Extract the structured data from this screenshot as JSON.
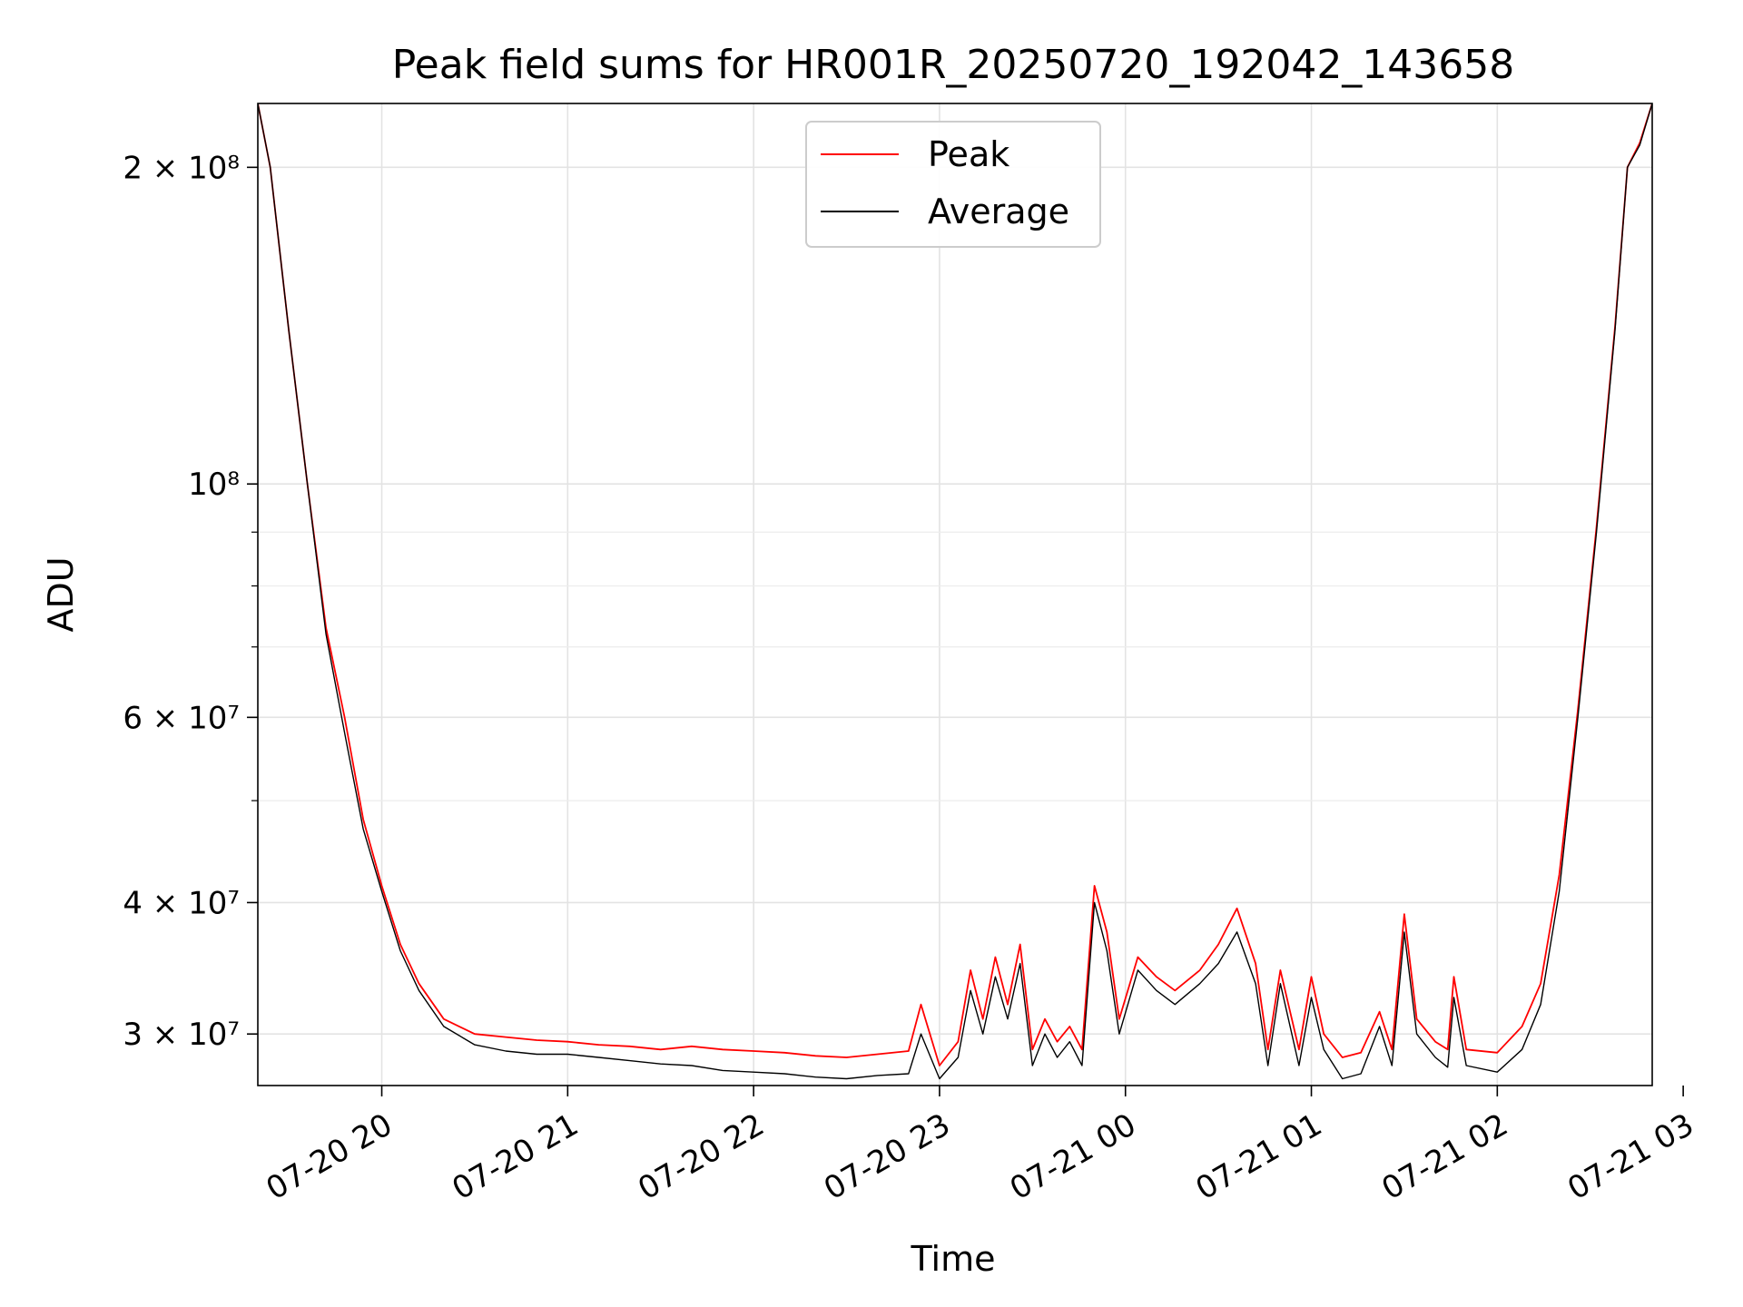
{
  "chart_data": {
    "type": "line",
    "title": "Peak field sums for HR001R_20250720_192042_143658",
    "xlabel": "Time",
    "ylabel": "ADU",
    "yscale": "log",
    "x_start": "07-20 19:20",
    "x_end": "07-21 02:50",
    "ylim": [
      26800000,
      230000000
    ],
    "grid": true,
    "legend_position": "upper center",
    "x_ticks": [
      {
        "label": "07-20 20",
        "time": "07-20 20:00"
      },
      {
        "label": "07-20 21",
        "time": "07-20 21:00"
      },
      {
        "label": "07-20 22",
        "time": "07-20 22:00"
      },
      {
        "label": "07-20 23",
        "time": "07-20 23:00"
      },
      {
        "label": "07-21 00",
        "time": "07-21 00:00"
      },
      {
        "label": "07-21 01",
        "time": "07-21 01:00"
      },
      {
        "label": "07-21 02",
        "time": "07-21 02:00"
      },
      {
        "label": "07-21 03",
        "time": "07-21 03:00"
      }
    ],
    "y_major_ticks": [
      {
        "label": "2 × 10⁸",
        "value": 200000000
      },
      {
        "label": "10⁸",
        "value": 100000000
      },
      {
        "label": "6 × 10⁷",
        "value": 60000000
      },
      {
        "label": "4 × 10⁷",
        "value": 40000000
      },
      {
        "label": "3 × 10⁷",
        "value": 30000000
      }
    ],
    "y_minor_ticks": [
      90000000,
      80000000,
      70000000,
      50000000
    ],
    "series": [
      {
        "name": "Average",
        "color": "#000000",
        "points": [
          [
            "07-20 19:20",
            230000000
          ],
          [
            "07-20 19:24",
            200000000
          ],
          [
            "07-20 19:30",
            140000000
          ],
          [
            "07-20 19:36",
            100000000
          ],
          [
            "07-20 19:42",
            72000000
          ],
          [
            "07-20 19:48",
            58000000
          ],
          [
            "07-20 19:54",
            47000000
          ],
          [
            "07-20 20:00",
            41000000
          ],
          [
            "07-20 20:06",
            36000000
          ],
          [
            "07-20 20:12",
            33000000
          ],
          [
            "07-20 20:20",
            30500000
          ],
          [
            "07-20 20:30",
            29300000
          ],
          [
            "07-20 20:40",
            28900000
          ],
          [
            "07-20 20:50",
            28700000
          ],
          [
            "07-20 21:00",
            28700000
          ],
          [
            "07-20 21:10",
            28500000
          ],
          [
            "07-20 21:20",
            28300000
          ],
          [
            "07-20 21:30",
            28100000
          ],
          [
            "07-20 21:40",
            28000000
          ],
          [
            "07-20 21:50",
            27700000
          ],
          [
            "07-20 22:00",
            27600000
          ],
          [
            "07-20 22:10",
            27500000
          ],
          [
            "07-20 22:20",
            27300000
          ],
          [
            "07-20 22:30",
            27200000
          ],
          [
            "07-20 22:40",
            27400000
          ],
          [
            "07-20 22:50",
            27500000
          ],
          [
            "07-20 22:54",
            30000000
          ],
          [
            "07-20 23:00",
            27200000
          ],
          [
            "07-20 23:06",
            28500000
          ],
          [
            "07-20 23:10",
            33000000
          ],
          [
            "07-20 23:14",
            30000000
          ],
          [
            "07-20 23:18",
            34000000
          ],
          [
            "07-20 23:22",
            31000000
          ],
          [
            "07-20 23:26",
            35000000
          ],
          [
            "07-20 23:30",
            28000000
          ],
          [
            "07-20 23:34",
            30000000
          ],
          [
            "07-20 23:38",
            28500000
          ],
          [
            "07-20 23:42",
            29500000
          ],
          [
            "07-20 23:46",
            28000000
          ],
          [
            "07-20 23:50",
            40000000
          ],
          [
            "07-20 23:54",
            36000000
          ],
          [
            "07-20 23:58",
            30000000
          ],
          [
            "07-21 00:04",
            34500000
          ],
          [
            "07-21 00:10",
            33000000
          ],
          [
            "07-21 00:16",
            32000000
          ],
          [
            "07-21 00:24",
            33500000
          ],
          [
            "07-21 00:30",
            35000000
          ],
          [
            "07-21 00:36",
            37500000
          ],
          [
            "07-21 00:42",
            33500000
          ],
          [
            "07-21 00:46",
            28000000
          ],
          [
            "07-21 00:50",
            33500000
          ],
          [
            "07-21 00:56",
            28000000
          ],
          [
            "07-21 01:00",
            32500000
          ],
          [
            "07-21 01:04",
            29000000
          ],
          [
            "07-21 01:10",
            27200000
          ],
          [
            "07-21 01:16",
            27500000
          ],
          [
            "07-21 01:22",
            30500000
          ],
          [
            "07-21 01:26",
            28000000
          ],
          [
            "07-21 01:30",
            37500000
          ],
          [
            "07-21 01:34",
            30000000
          ],
          [
            "07-21 01:40",
            28500000
          ],
          [
            "07-21 01:44",
            27900000
          ],
          [
            "07-21 01:46",
            32500000
          ],
          [
            "07-21 01:50",
            28000000
          ],
          [
            "07-21 02:00",
            27600000
          ],
          [
            "07-21 02:08",
            29000000
          ],
          [
            "07-21 02:14",
            32000000
          ],
          [
            "07-21 02:20",
            41000000
          ],
          [
            "07-21 02:26",
            60000000
          ],
          [
            "07-21 02:32",
            90000000
          ],
          [
            "07-21 02:38",
            140000000
          ],
          [
            "07-21 02:42",
            200000000
          ],
          [
            "07-21 02:46",
            210000000
          ],
          [
            "07-21 02:50",
            230000000
          ]
        ]
      },
      {
        "name": "Peak",
        "color": "#ff0000",
        "points": [
          [
            "07-20 19:20",
            230000000
          ],
          [
            "07-20 19:24",
            200000000
          ],
          [
            "07-20 19:30",
            140000000
          ],
          [
            "07-20 19:36",
            100000000
          ],
          [
            "07-20 19:42",
            73000000
          ],
          [
            "07-20 19:48",
            60000000
          ],
          [
            "07-20 19:54",
            48000000
          ],
          [
            "07-20 20:00",
            41500000
          ],
          [
            "07-20 20:06",
            36500000
          ],
          [
            "07-20 20:12",
            33500000
          ],
          [
            "07-20 20:20",
            31000000
          ],
          [
            "07-20 20:30",
            30000000
          ],
          [
            "07-20 20:40",
            29800000
          ],
          [
            "07-20 20:50",
            29600000
          ],
          [
            "07-20 21:00",
            29500000
          ],
          [
            "07-20 21:10",
            29300000
          ],
          [
            "07-20 21:20",
            29200000
          ],
          [
            "07-20 21:30",
            29000000
          ],
          [
            "07-20 21:40",
            29200000
          ],
          [
            "07-20 21:50",
            29000000
          ],
          [
            "07-20 22:00",
            28900000
          ],
          [
            "07-20 22:10",
            28800000
          ],
          [
            "07-20 22:20",
            28600000
          ],
          [
            "07-20 22:30",
            28500000
          ],
          [
            "07-20 22:40",
            28700000
          ],
          [
            "07-20 22:50",
            28900000
          ],
          [
            "07-20 22:54",
            32000000
          ],
          [
            "07-20 23:00",
            28000000
          ],
          [
            "07-20 23:06",
            29500000
          ],
          [
            "07-20 23:10",
            34500000
          ],
          [
            "07-20 23:14",
            31000000
          ],
          [
            "07-20 23:18",
            35500000
          ],
          [
            "07-20 23:22",
            32000000
          ],
          [
            "07-20 23:26",
            36500000
          ],
          [
            "07-20 23:30",
            29000000
          ],
          [
            "07-20 23:34",
            31000000
          ],
          [
            "07-20 23:38",
            29500000
          ],
          [
            "07-20 23:42",
            30500000
          ],
          [
            "07-20 23:46",
            29000000
          ],
          [
            "07-20 23:50",
            41500000
          ],
          [
            "07-20 23:54",
            37500000
          ],
          [
            "07-20 23:58",
            31000000
          ],
          [
            "07-21 00:04",
            35500000
          ],
          [
            "07-21 00:10",
            34000000
          ],
          [
            "07-21 00:16",
            33000000
          ],
          [
            "07-21 00:24",
            34500000
          ],
          [
            "07-21 00:30",
            36500000
          ],
          [
            "07-21 00:36",
            39500000
          ],
          [
            "07-21 00:42",
            35000000
          ],
          [
            "07-21 00:46",
            29000000
          ],
          [
            "07-21 00:50",
            34500000
          ],
          [
            "07-21 00:56",
            29000000
          ],
          [
            "07-21 01:00",
            34000000
          ],
          [
            "07-21 01:04",
            30000000
          ],
          [
            "07-21 01:10",
            28500000
          ],
          [
            "07-21 01:16",
            28800000
          ],
          [
            "07-21 01:22",
            31500000
          ],
          [
            "07-21 01:26",
            29000000
          ],
          [
            "07-21 01:30",
            39000000
          ],
          [
            "07-21 01:34",
            31000000
          ],
          [
            "07-21 01:40",
            29500000
          ],
          [
            "07-21 01:44",
            29000000
          ],
          [
            "07-21 01:46",
            34000000
          ],
          [
            "07-21 01:50",
            29000000
          ],
          [
            "07-21 02:00",
            28800000
          ],
          [
            "07-21 02:08",
            30500000
          ],
          [
            "07-21 02:14",
            33500000
          ],
          [
            "07-21 02:20",
            42500000
          ],
          [
            "07-21 02:26",
            61000000
          ],
          [
            "07-21 02:32",
            91000000
          ],
          [
            "07-21 02:38",
            141000000
          ],
          [
            "07-21 02:42",
            200000000
          ],
          [
            "07-21 02:46",
            211000000
          ],
          [
            "07-21 02:50",
            230000000
          ]
        ]
      }
    ],
    "legend": [
      {
        "label": "Peak",
        "color": "#ff0000"
      },
      {
        "label": "Average",
        "color": "#000000"
      }
    ]
  }
}
